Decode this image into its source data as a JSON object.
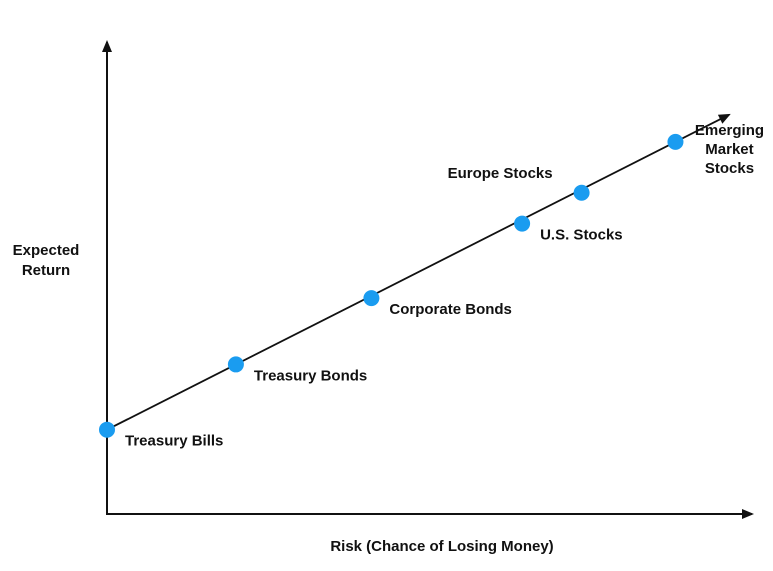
{
  "chart_data": {
    "type": "scatter",
    "xlabel": "Risk (Chance of Losing Money)",
    "ylabel_lines": [
      "Expected",
      "Return"
    ],
    "axis_ticks": false,
    "trend_line": true,
    "colors": {
      "point": "#1a9cf0",
      "line": "#111111",
      "axis": "#111111"
    },
    "points": [
      {
        "label_lines": [
          "Treasury Bills"
        ],
        "x": 0.0,
        "y": 0.164,
        "label_pos": "below-right"
      },
      {
        "label_lines": [
          "Treasury Bonds"
        ],
        "x": 0.195,
        "y": 0.291,
        "label_pos": "below-right"
      },
      {
        "label_lines": [
          "Corporate Bonds"
        ],
        "x": 0.4,
        "y": 0.42,
        "label_pos": "below-right"
      },
      {
        "label_lines": [
          "U.S. Stocks"
        ],
        "x": 0.628,
        "y": 0.565,
        "label_pos": "below-right"
      },
      {
        "label_lines": [
          "Europe Stocks"
        ],
        "x": 0.718,
        "y": 0.625,
        "label_pos": "above-left"
      },
      {
        "label_lines": [
          "Emerging",
          "Market",
          "Stocks"
        ],
        "x": 0.86,
        "y": 0.724,
        "label_pos": "right"
      }
    ],
    "xlim": [
      0,
      1
    ],
    "ylim": [
      0,
      1
    ]
  }
}
